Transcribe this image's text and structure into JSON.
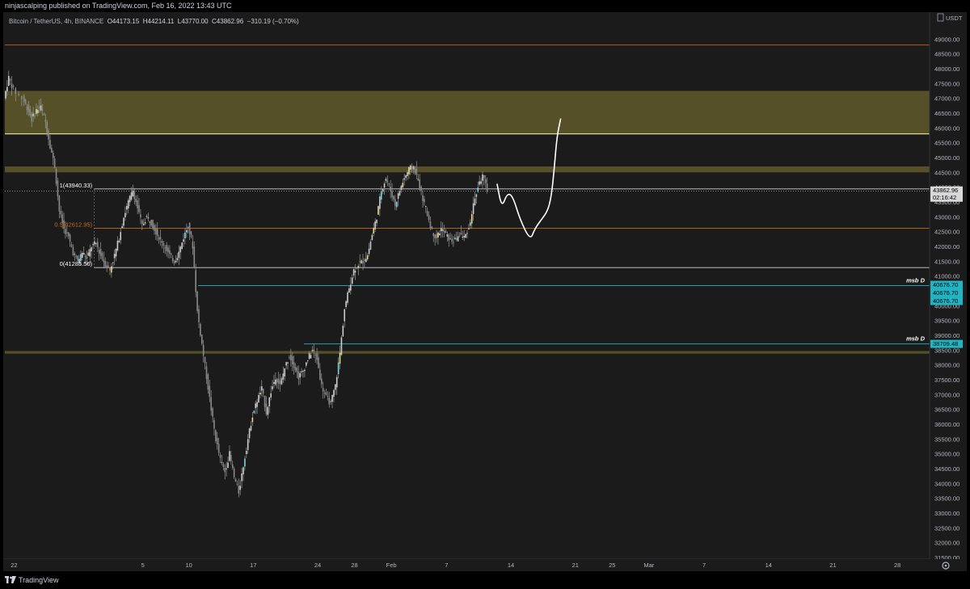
{
  "header": {
    "published_by": "ninjascalping published on TradingView.com, Feb 16, 2022 13:43 UTC"
  },
  "legend": {
    "symbol": "Bitcoin / TetherUS, 4h, BINANCE",
    "open": "O44173.15",
    "high": "H44214.11",
    "low": "L43770.00",
    "close": "C43862.96",
    "change": "−310.19 (−0.70%)"
  },
  "footer": {
    "brand": "TradingView"
  },
  "colors": {
    "background": "#1b1b1b",
    "zone_fill": "#5a532a",
    "zone_edge": "#f0eaa0",
    "orange_line": "#c46b1f",
    "cyan_line": "#21b5c3",
    "white_line": "#d1d4dc",
    "up_candle": "#cccccc",
    "down_candle": "#8a8a8a"
  },
  "chart_data": {
    "type": "candlestick",
    "symbol": "Bitcoin / TetherUS",
    "timeframe": "4h",
    "exchange": "BINANCE",
    "y_axis_unit": "USDT",
    "ylim": [
      31500,
      49500
    ],
    "y_ticks": [
      "31500.00",
      "32000.00",
      "32500.00",
      "33000.00",
      "33500.00",
      "34000.00",
      "34500.00",
      "35000.00",
      "35500.00",
      "36000.00",
      "36500.00",
      "37000.00",
      "37500.00",
      "38000.00",
      "38500.00",
      "39000.00",
      "39500.00",
      "40000.00",
      "40500.00",
      "41000.00",
      "41500.00",
      "42000.00",
      "42500.00",
      "43000.00",
      "43500.00",
      "44000.00",
      "44500.00",
      "45000.00",
      "45500.00",
      "46000.00",
      "46500.00",
      "47000.00",
      "47500.00",
      "48000.00",
      "48500.00",
      "49000.00"
    ],
    "x_tick_labels": [
      {
        "label": "22",
        "day": -10
      },
      {
        "label": "5",
        "day": 4
      },
      {
        "label": "10",
        "day": 9
      },
      {
        "label": "17",
        "day": 16
      },
      {
        "label": "24",
        "day": 23
      },
      {
        "label": "28",
        "day": 27
      },
      {
        "label": "Feb",
        "day": 31
      },
      {
        "label": "7",
        "day": 37
      },
      {
        "label": "14",
        "day": 44
      },
      {
        "label": "21",
        "day": 51
      },
      {
        "label": "25",
        "day": 55
      },
      {
        "label": "Mar",
        "day": 59
      },
      {
        "label": "7",
        "day": 65
      },
      {
        "label": "14",
        "day": 72
      },
      {
        "label": "21",
        "day": 79
      },
      {
        "label": "28",
        "day": 86
      }
    ],
    "x_day_range": [
      -11,
      89.5
    ],
    "price_path": [
      [
        -11,
        47000
      ],
      [
        -10.5,
        47700
      ],
      [
        -10,
        47300
      ],
      [
        -9,
        47000
      ],
      [
        -8.5,
        46700
      ],
      [
        -8,
        46300
      ],
      [
        -7.5,
        46600
      ],
      [
        -7,
        46700
      ],
      [
        -6.5,
        46200
      ],
      [
        -6,
        45400
      ],
      [
        -5.5,
        44700
      ],
      [
        -5,
        43200
      ],
      [
        -4.5,
        42600
      ],
      [
        -4,
        42300
      ],
      [
        -3.5,
        41800
      ],
      [
        -3,
        41500
      ],
      [
        -2.5,
        41800
      ],
      [
        -2,
        41600
      ],
      [
        -1.5,
        42000
      ],
      [
        -1,
        42100
      ],
      [
        -0.5,
        41700
      ],
      [
        0,
        41400
      ],
      [
        0.5,
        41200
      ],
      [
        1,
        41700
      ],
      [
        1.5,
        42300
      ],
      [
        2,
        43000
      ],
      [
        2.5,
        43500
      ],
      [
        3,
        43900
      ],
      [
        3.5,
        43300
      ],
      [
        4,
        42700
      ],
      [
        4.5,
        43000
      ],
      [
        5,
        42800
      ],
      [
        5.5,
        42500
      ],
      [
        6,
        42200
      ],
      [
        6.5,
        42000
      ],
      [
        7,
        41700
      ],
      [
        7.5,
        41500
      ],
      [
        8,
        41800
      ],
      [
        8.5,
        42300
      ],
      [
        9,
        42700
      ],
      [
        9.5,
        42000
      ],
      [
        10,
        39800
      ],
      [
        10.5,
        38700
      ],
      [
        11,
        37600
      ],
      [
        11.5,
        36500
      ],
      [
        12,
        35500
      ],
      [
        12.5,
        34800
      ],
      [
        13,
        34400
      ],
      [
        13.5,
        35000
      ],
      [
        14,
        34200
      ],
      [
        14.5,
        33700
      ],
      [
        15,
        34600
      ],
      [
        15.5,
        35500
      ],
      [
        16,
        36300
      ],
      [
        16.5,
        36800
      ],
      [
        17,
        37200
      ],
      [
        17.5,
        36400
      ],
      [
        18,
        37100
      ],
      [
        18.5,
        37600
      ],
      [
        19,
        37300
      ],
      [
        19.5,
        37900
      ],
      [
        20,
        38300
      ],
      [
        20.5,
        38000
      ],
      [
        21,
        37600
      ],
      [
        21.5,
        37800
      ],
      [
        22,
        38200
      ],
      [
        22.5,
        38500
      ],
      [
        23,
        38200
      ],
      [
        23.5,
        37300
      ],
      [
        24,
        36900
      ],
      [
        24.5,
        36700
      ],
      [
        25,
        37300
      ],
      [
        25.5,
        38400
      ],
      [
        26,
        39900
      ],
      [
        26.5,
        40600
      ],
      [
        27,
        41200
      ],
      [
        27.5,
        41400
      ],
      [
        28,
        41500
      ],
      [
        28.5,
        41700
      ],
      [
        29,
        42400
      ],
      [
        29.5,
        43000
      ],
      [
        30,
        43900
      ],
      [
        30.5,
        44300
      ],
      [
        31,
        43900
      ],
      [
        31.5,
        43400
      ],
      [
        32,
        43900
      ],
      [
        32.5,
        44300
      ],
      [
        33,
        44600
      ],
      [
        33.5,
        44700
      ],
      [
        34,
        44200
      ],
      [
        34.5,
        43600
      ],
      [
        35,
        43100
      ],
      [
        35.5,
        42500
      ],
      [
        36,
        42300
      ],
      [
        36.5,
        42600
      ],
      [
        37,
        42400
      ],
      [
        37.5,
        42200
      ],
      [
        38,
        42200
      ],
      [
        38.5,
        42400
      ],
      [
        39,
        42300
      ],
      [
        39.5,
        42600
      ],
      [
        40,
        43400
      ],
      [
        40.5,
        44000
      ],
      [
        41,
        44400
      ],
      [
        41.5,
        43860
      ]
    ],
    "zones": [
      {
        "name": "supply-zone-upper",
        "from": 45800,
        "to": 47250
      },
      {
        "name": "supply-zone-lower",
        "from": 44500,
        "to": 44700
      },
      {
        "name": "demand-zone",
        "from": 38380,
        "to": 38470
      }
    ],
    "horizontal_levels": [
      {
        "name": "orange-level-top",
        "price": 48800,
        "color": "orange"
      },
      {
        "name": "fib-1-line",
        "price": 43940.33,
        "color": "white"
      },
      {
        "name": "fib-05-line",
        "price": 42612.95,
        "color": "orange"
      },
      {
        "name": "fib-0-line",
        "price": 41285.56,
        "color": "white"
      },
      {
        "name": "msb-line-upper",
        "price": 40676.7,
        "color": "cyan"
      },
      {
        "name": "msb-line-lower",
        "price": 38709.48,
        "color": "cyan"
      }
    ],
    "fib_labels": [
      "1(43940.33)",
      "0.5(42612.95)",
      "0(41285.56)"
    ],
    "annotations": [
      "msb D",
      "msb D"
    ],
    "price_labels": [
      "43862.96",
      "02:16:42",
      "40676.70",
      "40676.70",
      "40676.70",
      "38709.48"
    ],
    "projection_path": [
      [
        42.5,
        44100
      ],
      [
        43.0,
        43300
      ],
      [
        43.6,
        43800
      ],
      [
        44.2,
        43700
      ],
      [
        45.0,
        42900
      ],
      [
        46.1,
        42200
      ],
      [
        46.6,
        42600
      ],
      [
        47.3,
        42900
      ],
      [
        48.0,
        43200
      ],
      [
        48.4,
        43700
      ],
      [
        48.7,
        44600
      ],
      [
        49.0,
        45700
      ],
      [
        49.4,
        46300
      ]
    ]
  }
}
